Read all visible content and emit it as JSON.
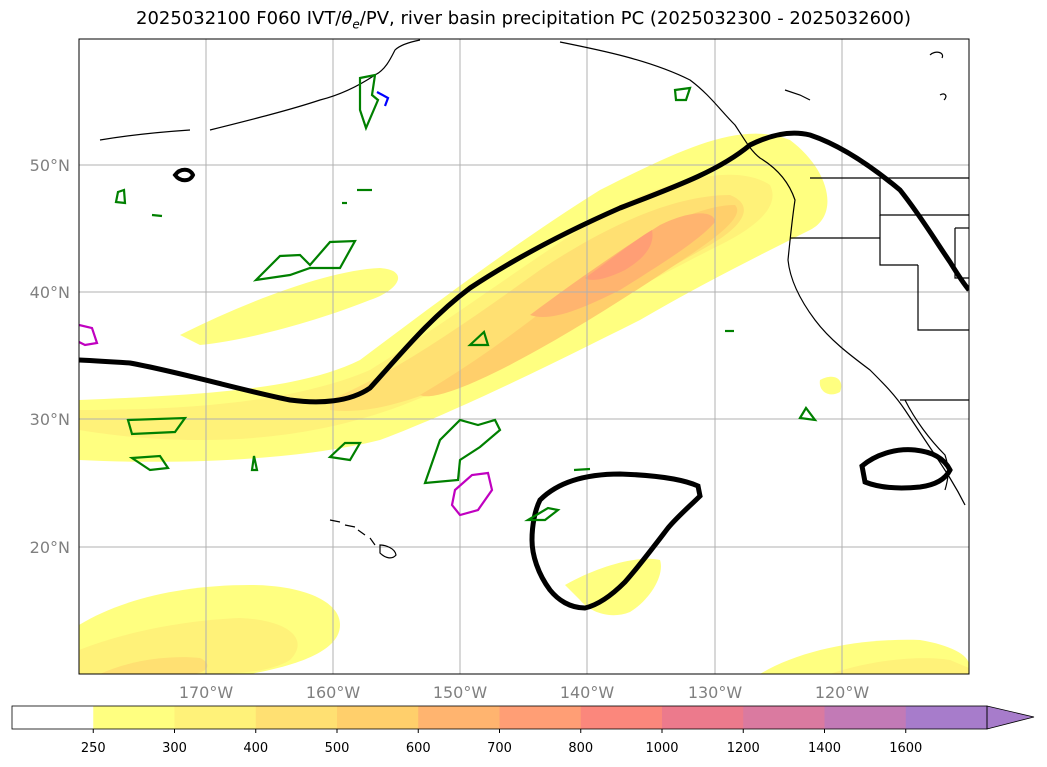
{
  "title": {
    "run": "2025032100 F060 IVT/",
    "theta": "θ",
    "theta_sub": "e",
    "rest": "/PV, river basin precipitation PC (2025032300 - 2025032600)"
  },
  "map": {
    "lat_labels": [
      "50°N",
      "40°N",
      "30°N",
      "20°N"
    ],
    "lon_labels": [
      "170°W",
      "160°W",
      "150°W",
      "140°W",
      "130°W",
      "120°W"
    ],
    "extent": {
      "lon_min": -180,
      "lon_max": -110,
      "lat_min": 10,
      "lat_max": 60
    },
    "ivt_fill_colors": [
      "#ffffff",
      "#ffff80",
      "#fff279",
      "#ffe072",
      "#ffcf6b",
      "#ffb46f",
      "#ff9e75",
      "#fb877c",
      "#ec7a8c",
      "#da7aa0",
      "#c27ab6",
      "#a77ccb"
    ]
  },
  "colorbar": {
    "ticks": [
      "250",
      "300",
      "400",
      "500",
      "600",
      "700",
      "800",
      "1000",
      "1200",
      "1400",
      "1600"
    ],
    "colors": [
      "#ffffff",
      "#ffff80",
      "#fff279",
      "#ffe072",
      "#ffcf6b",
      "#ffb46f",
      "#ff9e75",
      "#fb877c",
      "#ec7a8c",
      "#da7aa0",
      "#c27ab6",
      "#a77ccb"
    ],
    "extend": "max"
  }
}
